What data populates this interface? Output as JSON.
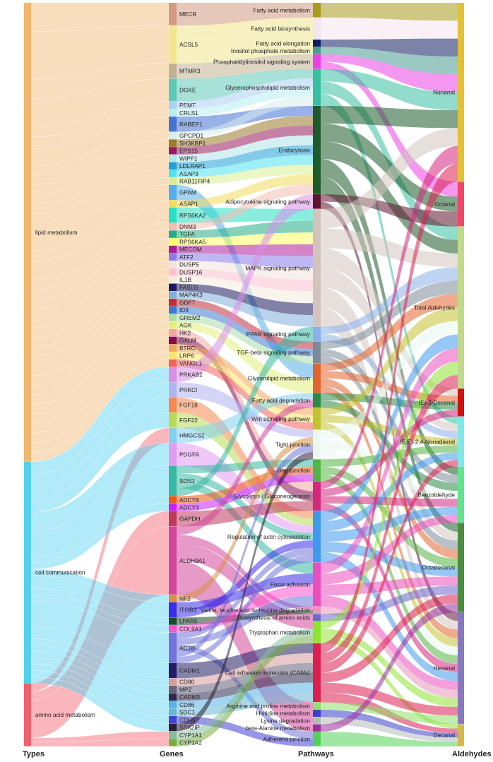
{
  "axis_labels": [
    "Types",
    "Genes",
    "Pathways",
    "Aldehydes"
  ],
  "colors": {
    "types": [
      "#f2b66d",
      "#53d0f0",
      "#f25f6c"
    ],
    "genes": [
      "#d29a82",
      "#f0e690",
      "#c3b292",
      "#5fc9b8",
      "#a9d2f3",
      "#b7eef0",
      "#4373d3",
      "#d7ecec",
      "#9a7a2b",
      "#98195e",
      "#b1e4ea",
      "#1ea1d6",
      "#50e1f0",
      "#d9ee93",
      "#55aee9",
      "#f3da57",
      "#25e0c4",
      "#f4bdb3",
      "#23ae87",
      "#fdfd67",
      "#b01f9b",
      "#8a7bea",
      "#f3e4de",
      "#fac1cf",
      "#f6ecdc",
      "#1b1b60",
      "#82aedb",
      "#c02f3c",
      "#3d7cd0",
      "#acdfa7",
      "#e2f07a",
      "#f2a4a0",
      "#830e4e",
      "#f0a65b",
      "#fae569",
      "#f0625b",
      "#d98fe5",
      "#b1b3ee",
      "#f5894f",
      "#b7db58",
      "#82d0f0",
      "#e29bf4",
      "#36b8a4",
      "#ee5a16",
      "#c920fb",
      "#bf3b5e",
      "#d4469b",
      "#d68f45",
      "#3a2ee9",
      "#1c4b2c",
      "#ff52d0",
      "#7174da",
      "#231d63",
      "#d59a9a",
      "#67637a",
      "#2d2a4e",
      "#57b3e3",
      "#6ab6d3",
      "#4140d6",
      "#2c1d33",
      "#85be9a",
      "#79ad43"
    ],
    "pathways": [
      "#a89a1c",
      "#f4e6ee",
      "#0e1d63",
      "#4b9b91",
      "#e941e3",
      "#36bfa0",
      "#1c5b2a",
      "#5e142d",
      "#d2c4bd",
      "#8bb0ea",
      "#7c8a99",
      "#e3652e",
      "#2a8a45",
      "#c2c331",
      "#e9f7ee",
      "#55b544",
      "#d4277e",
      "#3f99ec",
      "#eb4fbd",
      "#e698bc",
      "#6e6acd",
      "#8fe431",
      "#dd1f50",
      "#8fe06a",
      "#3a40c9",
      "#b4bcb8",
      "#9b2f9b",
      "#55d15a"
    ],
    "aldehydes": [
      "#e4c034",
      "#f2456a",
      "#c1da89",
      "#cf1010",
      "#7fe8e6",
      "#62e38c",
      "#4c8c3f",
      "#8879bf",
      "#d5b84d"
    ]
  },
  "types": {
    "labels": [
      "lipid metabolism",
      "cell communication",
      "amino acid metabolism"
    ],
    "values": [
      58,
      28,
      8
    ]
  },
  "genes": {
    "labels": [
      "MECR",
      "ACSL5",
      "MTMR3",
      "DGKE",
      "PEMT",
      "CRLS1",
      "RABEP1",
      "GPCPD1",
      "SH3KBP1",
      "EPS15",
      "WIPF1",
      "LDLRAP1",
      "ASAP3",
      "RAB11FIP4",
      "GPAM",
      "ASAP1",
      "RPS6KA2",
      "DNM3",
      "TGFA",
      "RPS6KA5",
      "MECOM",
      "ATF2",
      "DUSP5",
      "DUSP16",
      "IL1B",
      "FASLG",
      "MAP4K3",
      "GDF7",
      "ID3",
      "GREM2",
      "AGK",
      "HK2",
      "GALM",
      "BTRC",
      "LRP6",
      "VANGL1",
      "PRKAB2",
      "PRKCI",
      "FGF18",
      "FGF22",
      "HMGCS2",
      "PDGFA",
      "SOS1",
      "ADCY8",
      "ADCY3",
      "GAPDH",
      "ALDH9A1",
      "NF2",
      "ITGB3",
      "LPAR5",
      "COL9A1",
      "ACTB",
      "CADM1",
      "CD80",
      "MPZ",
      "CADM3",
      "CD86",
      "SDC1",
      "CDH5",
      "SSX2IP",
      "CYP1A1",
      "CYP1A2"
    ],
    "values": [
      3,
      5,
      2,
      3,
      1,
      1,
      2,
      1,
      1,
      1,
      1,
      1,
      1,
      1,
      2,
      1,
      2,
      1,
      1,
      1,
      1,
      1,
      1,
      1,
      1,
      1,
      1,
      1,
      1,
      1,
      1,
      1,
      1,
      1,
      1,
      1,
      2,
      2,
      2,
      2,
      2,
      3,
      4,
      1,
      1,
      2,
      9,
      1,
      2,
      1,
      1,
      4,
      2,
      1,
      1,
      1,
      1,
      1,
      1,
      1,
      1,
      1
    ]
  },
  "pathways": {
    "labels": [
      "Fatty acid metabolism",
      "Fatty acid biosynthesis",
      "Fatty acid elongation",
      "Inositol phosphate metabolism",
      "Phosphatidylinositol signaling system",
      "Glycerophospholipid metabolism",
      "Endocytosis",
      "Adipocytokine signaling pathway",
      "MAPK signaling pathway",
      "PPAR signaling pathway",
      "TGF-beta signaling pathway",
      "Glycerolipid metabolism",
      "Fatty acid degradation",
      "Wnt signaling pathway",
      "Tight junction",
      "Gap junction",
      "Glycolysis / Gluconeogenesis",
      "Regulation of actin cytoskeleton",
      "Focal adhesion",
      "Valine, leucine and isoleucine degradation",
      "Biosynthesis of amino acids",
      "Tryptophan metabolism",
      "Cell adhesion molecules (CAMs)",
      "Arginine and proline metabolism",
      "Histidine metabolism",
      "Lysine degradation",
      "beta-Alanine metabolism",
      "Adherens junction"
    ],
    "values": [
      2,
      3,
      1,
      1,
      2,
      5,
      12,
      2,
      16,
      2,
      3,
      4,
      2,
      3,
      4,
      3,
      4,
      7,
      6,
      1,
      1,
      3,
      8,
      1,
      1,
      1,
      1,
      2
    ]
  },
  "aldehydes": {
    "labels": [
      "Nonanal",
      "Octanal",
      "Total Aldehydes",
      "(E)-2-Decenal",
      "(E,E)-2,4-Nonadienal",
      "Benzaldehyde",
      "Octadecanal",
      "Hexanal",
      "Decanal"
    ],
    "values": [
      32,
      8,
      29,
      5,
      9,
      10,
      16,
      20,
      4
    ]
  }
}
